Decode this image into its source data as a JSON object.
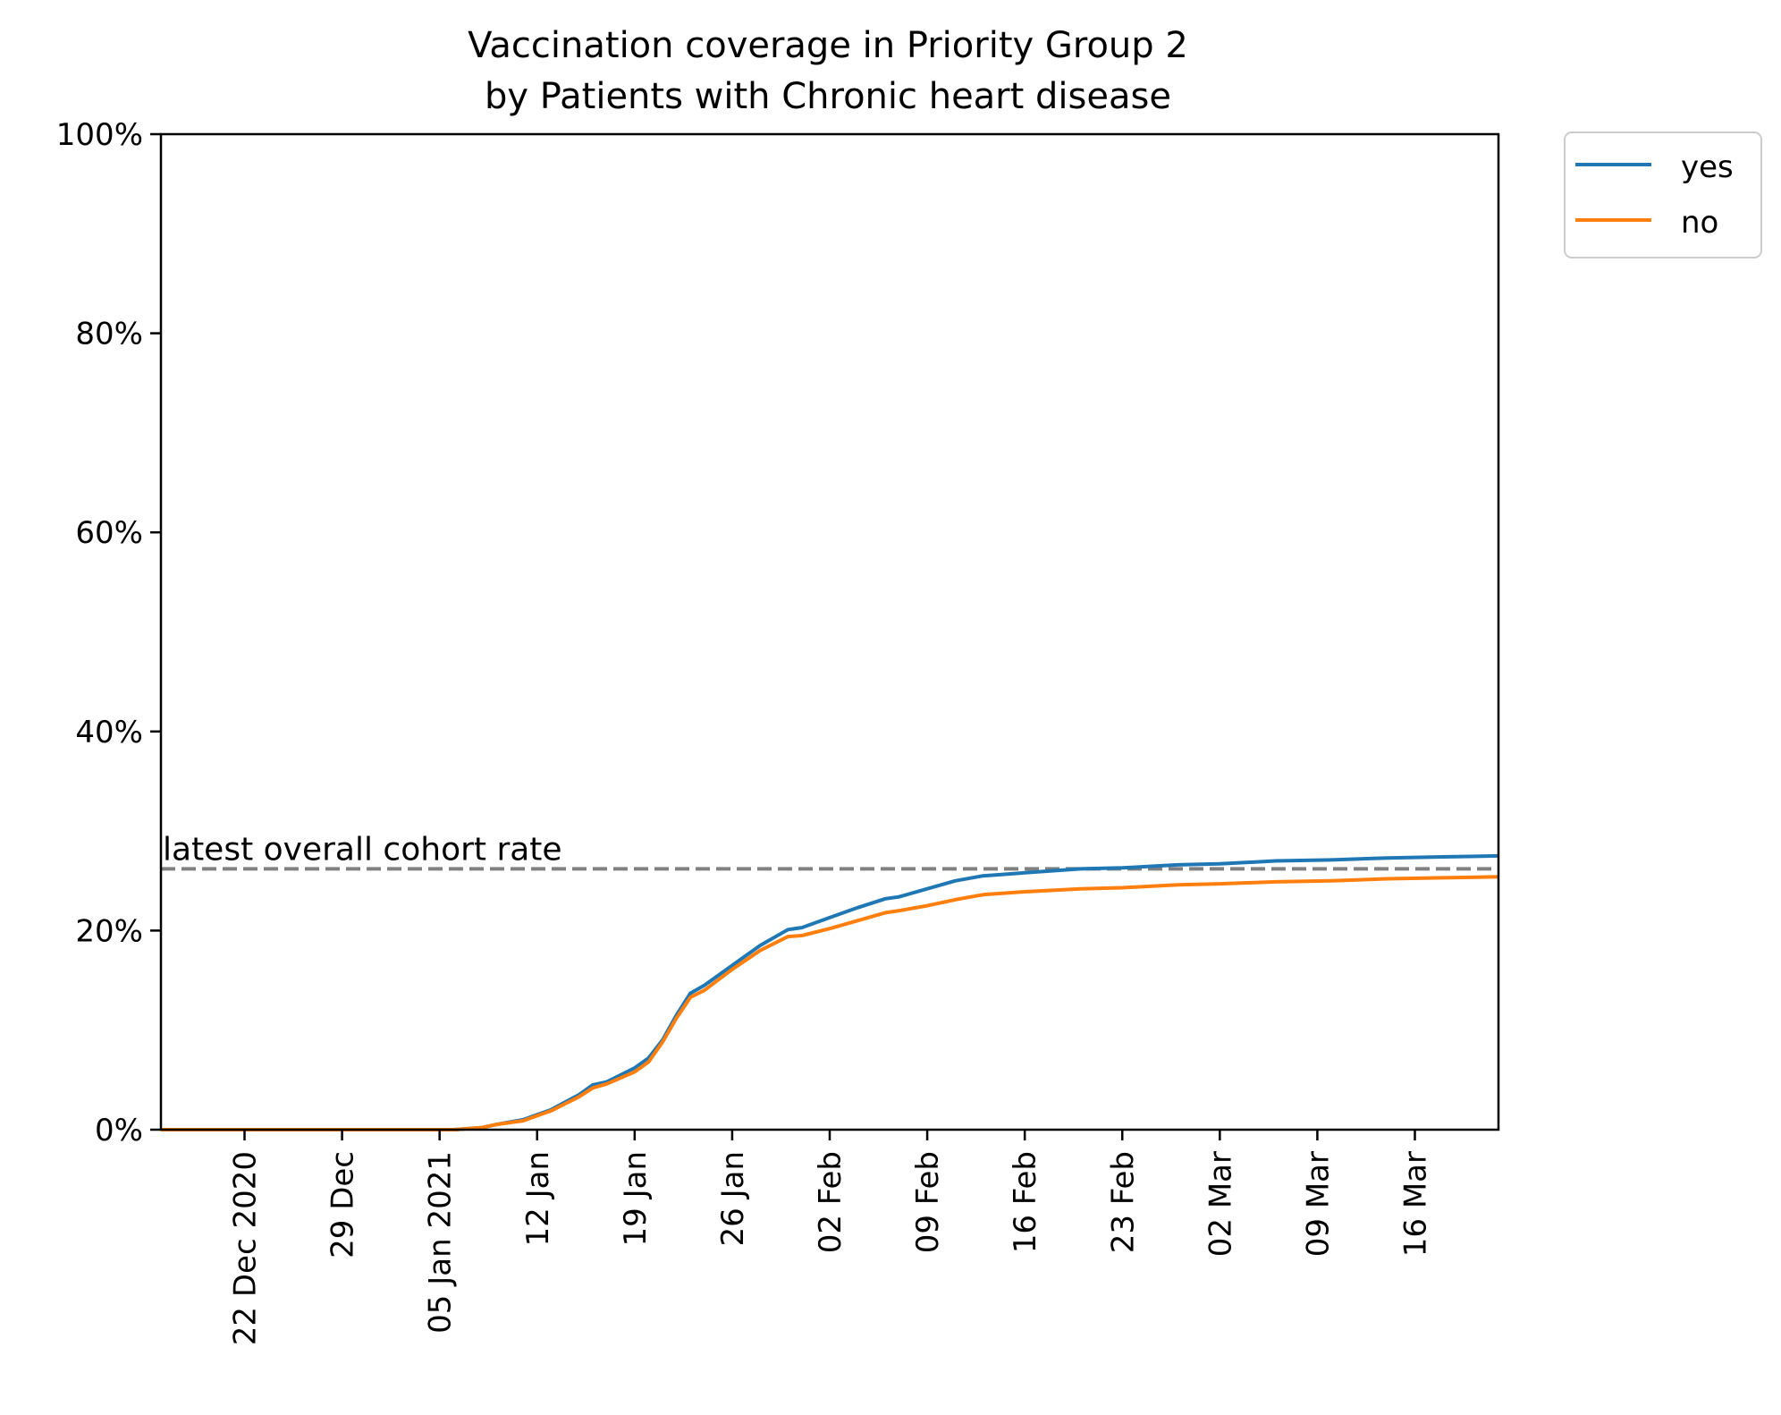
{
  "chart_data": {
    "type": "line",
    "title": "Vaccination coverage in Priority Group 2\nby Patients with Chronic heart disease",
    "title_lines": [
      "Vaccination coverage in Priority Group 2",
      "by Patients with Chronic heart disease"
    ],
    "xlabel": "",
    "ylabel": "",
    "xlim": [
      "2020-12-16",
      "2021-03-22"
    ],
    "ylim": [
      0,
      100
    ],
    "x_ticks": [
      {
        "date": "2020-12-22",
        "label": "22 Dec 2020"
      },
      {
        "date": "2020-12-29",
        "label": "29 Dec"
      },
      {
        "date": "2021-01-05",
        "label": "05 Jan 2021"
      },
      {
        "date": "2021-01-12",
        "label": "12 Jan"
      },
      {
        "date": "2021-01-19",
        "label": "19 Jan"
      },
      {
        "date": "2021-01-26",
        "label": "26 Jan"
      },
      {
        "date": "2021-02-02",
        "label": "02 Feb"
      },
      {
        "date": "2021-02-09",
        "label": "09 Feb"
      },
      {
        "date": "2021-02-16",
        "label": "16 Feb"
      },
      {
        "date": "2021-02-23",
        "label": "23 Feb"
      },
      {
        "date": "2021-03-02",
        "label": "02 Mar"
      },
      {
        "date": "2021-03-09",
        "label": "09 Mar"
      },
      {
        "date": "2021-03-16",
        "label": "16 Mar"
      }
    ],
    "y_ticks": [
      {
        "value": 0,
        "label": "0%"
      },
      {
        "value": 20,
        "label": "20%"
      },
      {
        "value": 40,
        "label": "40%"
      },
      {
        "value": 60,
        "label": "60%"
      },
      {
        "value": 80,
        "label": "80%"
      },
      {
        "value": 100,
        "label": "100%"
      }
    ],
    "grid": false,
    "legend_position": "outside top-right",
    "reference_line": {
      "label": "latest overall cohort rate",
      "value": 26.2,
      "color": "#808080",
      "style": "dashed"
    },
    "series": [
      {
        "name": "yes",
        "color": "#1f77b4",
        "points": [
          [
            "2020-12-16",
            0
          ],
          [
            "2021-01-06",
            0
          ],
          [
            "2021-01-08",
            0.2
          ],
          [
            "2021-01-09",
            0.5
          ],
          [
            "2021-01-11",
            1.0
          ],
          [
            "2021-01-12",
            1.5
          ],
          [
            "2021-01-13",
            2.0
          ],
          [
            "2021-01-15",
            3.5
          ],
          [
            "2021-01-16",
            4.5
          ],
          [
            "2021-01-17",
            4.8
          ],
          [
            "2021-01-19",
            6.2
          ],
          [
            "2021-01-20",
            7.2
          ],
          [
            "2021-01-21",
            9.0
          ],
          [
            "2021-01-22",
            11.5
          ],
          [
            "2021-01-23",
            13.7
          ],
          [
            "2021-01-24",
            14.5
          ],
          [
            "2021-01-26",
            16.5
          ],
          [
            "2021-01-28",
            18.5
          ],
          [
            "2021-01-30",
            20.1
          ],
          [
            "2021-01-31",
            20.3
          ],
          [
            "2021-02-02",
            21.3
          ],
          [
            "2021-02-04",
            22.3
          ],
          [
            "2021-02-06",
            23.2
          ],
          [
            "2021-02-07",
            23.4
          ],
          [
            "2021-02-09",
            24.2
          ],
          [
            "2021-02-11",
            25.0
          ],
          [
            "2021-02-13",
            25.5
          ],
          [
            "2021-02-16",
            25.8
          ],
          [
            "2021-02-20",
            26.2
          ],
          [
            "2021-02-23",
            26.3
          ],
          [
            "2021-02-27",
            26.6
          ],
          [
            "2021-03-02",
            26.7
          ],
          [
            "2021-03-06",
            27.0
          ],
          [
            "2021-03-10",
            27.1
          ],
          [
            "2021-03-14",
            27.3
          ],
          [
            "2021-03-18",
            27.4
          ],
          [
            "2021-03-22",
            27.5
          ]
        ]
      },
      {
        "name": "no",
        "color": "#ff7f0e",
        "points": [
          [
            "2020-12-16",
            0
          ],
          [
            "2021-01-06",
            0
          ],
          [
            "2021-01-08",
            0.2
          ],
          [
            "2021-01-09",
            0.5
          ],
          [
            "2021-01-11",
            0.9
          ],
          [
            "2021-01-12",
            1.4
          ],
          [
            "2021-01-13",
            1.9
          ],
          [
            "2021-01-15",
            3.3
          ],
          [
            "2021-01-16",
            4.2
          ],
          [
            "2021-01-17",
            4.6
          ],
          [
            "2021-01-19",
            5.8
          ],
          [
            "2021-01-20",
            6.8
          ],
          [
            "2021-01-21",
            8.8
          ],
          [
            "2021-01-22",
            11.2
          ],
          [
            "2021-01-23",
            13.3
          ],
          [
            "2021-01-24",
            14.0
          ],
          [
            "2021-01-26",
            16.1
          ],
          [
            "2021-01-28",
            18.0
          ],
          [
            "2021-01-30",
            19.4
          ],
          [
            "2021-01-31",
            19.5
          ],
          [
            "2021-02-02",
            20.2
          ],
          [
            "2021-02-04",
            21.0
          ],
          [
            "2021-02-06",
            21.8
          ],
          [
            "2021-02-07",
            22.0
          ],
          [
            "2021-02-09",
            22.5
          ],
          [
            "2021-02-11",
            23.1
          ],
          [
            "2021-02-13",
            23.6
          ],
          [
            "2021-02-16",
            23.9
          ],
          [
            "2021-02-20",
            24.2
          ],
          [
            "2021-02-23",
            24.3
          ],
          [
            "2021-02-27",
            24.6
          ],
          [
            "2021-03-02",
            24.7
          ],
          [
            "2021-03-06",
            24.9
          ],
          [
            "2021-03-10",
            25.0
          ],
          [
            "2021-03-14",
            25.2
          ],
          [
            "2021-03-18",
            25.3
          ],
          [
            "2021-03-22",
            25.4
          ]
        ]
      }
    ]
  }
}
